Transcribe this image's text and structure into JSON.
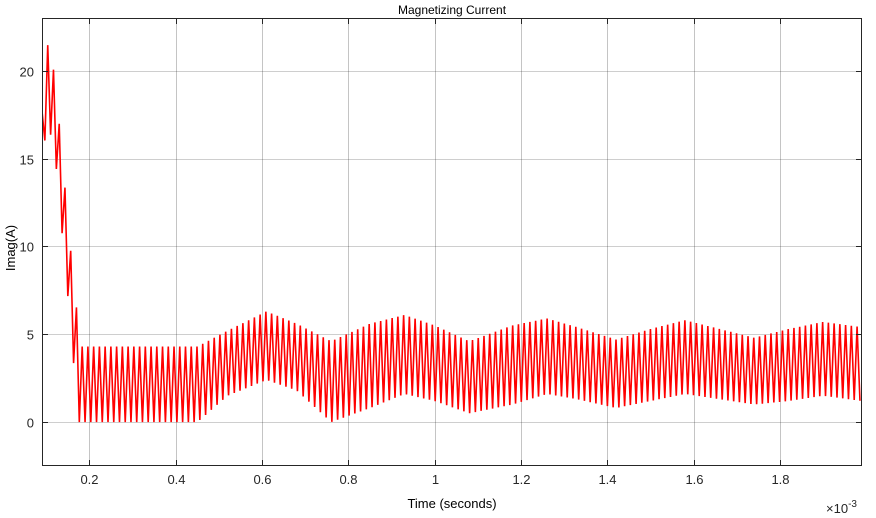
{
  "chart_data": {
    "type": "line",
    "title": "Magnetizing Current",
    "xlabel": "Time (seconds)",
    "ylabel": "Imag(A)",
    "x_exponent_label": "×10",
    "x_exponent_power": "-3",
    "xlim": [
      0.09,
      1.99
    ],
    "ylim": [
      -2.5,
      23
    ],
    "xticks": [
      0.2,
      0.4,
      0.6,
      0.8,
      1,
      1.2,
      1.4,
      1.6,
      1.8
    ],
    "xtick_labels": [
      "0.2",
      "0.4",
      "0.6",
      "0.8",
      "1",
      "1.2",
      "1.4",
      "1.6",
      "1.8"
    ],
    "yticks": [
      0,
      5,
      10,
      15,
      20
    ],
    "ytick_labels": [
      "0",
      "5",
      "10",
      "15",
      "20"
    ],
    "grid": true,
    "series": [
      {
        "color": "#ff0000",
        "description_points": [
          [
            0.09,
            15.5
          ],
          [
            0.1,
            19.6
          ],
          [
            0.12,
            17.5
          ],
          [
            0.14,
            12
          ],
          [
            0.155,
            8
          ],
          [
            0.165,
            5
          ],
          [
            0.17,
            4.3
          ],
          [
            0.2,
            2.2
          ],
          [
            0.3,
            2.2
          ],
          [
            0.38,
            2.2
          ],
          [
            0.45,
            2.3
          ],
          [
            0.55,
            3.5
          ],
          [
            0.61,
            4.0
          ],
          [
            0.68,
            3.5
          ],
          [
            0.76,
            2.7
          ],
          [
            0.85,
            3.3
          ],
          [
            0.93,
            3.8
          ],
          [
            1.0,
            3.4
          ],
          [
            1.08,
            2.8
          ],
          [
            1.18,
            3.3
          ],
          [
            1.26,
            3.7
          ],
          [
            1.33,
            3.4
          ],
          [
            1.42,
            2.8
          ],
          [
            1.5,
            3.2
          ],
          [
            1.58,
            3.6
          ],
          [
            1.66,
            3.3
          ],
          [
            1.74,
            2.9
          ],
          [
            1.82,
            3.2
          ],
          [
            1.9,
            3.5
          ],
          [
            1.99,
            3.4
          ]
        ],
        "envelope_upper": [
          [
            0.17,
            4.3
          ],
          [
            0.45,
            4.3
          ],
          [
            0.52,
            5.2
          ],
          [
            0.61,
            6.3
          ],
          [
            0.68,
            5.6
          ],
          [
            0.76,
            4.6
          ],
          [
            0.85,
            5.6
          ],
          [
            0.93,
            6.1
          ],
          [
            1.0,
            5.5
          ],
          [
            1.08,
            4.6
          ],
          [
            1.18,
            5.5
          ],
          [
            1.26,
            5.9
          ],
          [
            1.33,
            5.4
          ],
          [
            1.42,
            4.7
          ],
          [
            1.5,
            5.3
          ],
          [
            1.58,
            5.8
          ],
          [
            1.66,
            5.3
          ],
          [
            1.74,
            4.8
          ],
          [
            1.82,
            5.3
          ],
          [
            1.9,
            5.7
          ],
          [
            1.99,
            5.4
          ]
        ],
        "envelope_lower": [
          [
            0.17,
            0.0
          ],
          [
            0.45,
            0.0
          ],
          [
            0.52,
            1.5
          ],
          [
            0.61,
            2.4
          ],
          [
            0.68,
            1.8
          ],
          [
            0.76,
            0.0
          ],
          [
            0.85,
            0.8
          ],
          [
            0.93,
            1.6
          ],
          [
            1.0,
            1.2
          ],
          [
            1.08,
            0.5
          ],
          [
            1.18,
            1.0
          ],
          [
            1.26,
            1.6
          ],
          [
            1.33,
            1.3
          ],
          [
            1.42,
            0.8
          ],
          [
            1.5,
            1.2
          ],
          [
            1.58,
            1.6
          ],
          [
            1.66,
            1.3
          ],
          [
            1.74,
            1.0
          ],
          [
            1.82,
            1.2
          ],
          [
            1.9,
            1.5
          ],
          [
            1.99,
            1.2
          ]
        ],
        "oscillation_period": 0.0133
      }
    ]
  }
}
